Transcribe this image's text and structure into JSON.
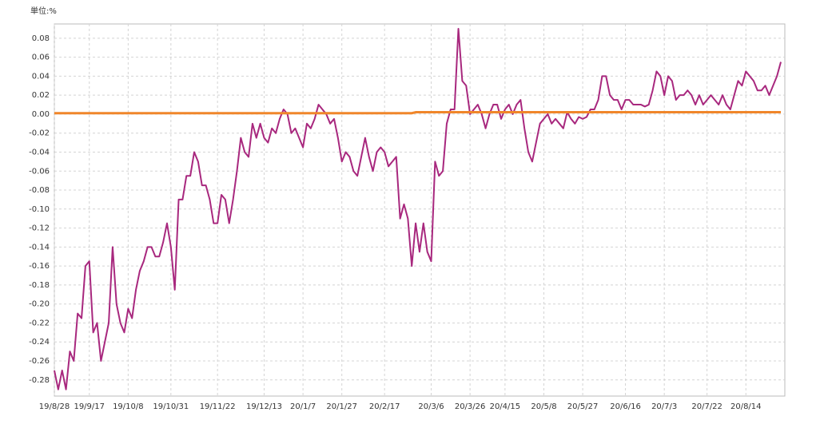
{
  "chart_data": {
    "type": "line",
    "unit_label": "単位:%",
    "categories": [
      "19/8/28",
      null,
      null,
      null,
      null,
      null,
      null,
      null,
      null,
      "19/9/17",
      null,
      null,
      null,
      null,
      null,
      null,
      null,
      null,
      null,
      "19/10/8",
      null,
      null,
      null,
      null,
      null,
      null,
      null,
      null,
      null,
      null,
      "19/10/31",
      null,
      null,
      null,
      null,
      null,
      null,
      null,
      null,
      null,
      null,
      null,
      "19/11/22",
      null,
      null,
      null,
      null,
      null,
      null,
      null,
      null,
      null,
      null,
      null,
      "19/12/13",
      null,
      null,
      null,
      null,
      null,
      null,
      null,
      null,
      null,
      "20/1/7",
      null,
      null,
      null,
      null,
      null,
      null,
      null,
      null,
      null,
      "20/1/27",
      null,
      null,
      null,
      null,
      null,
      null,
      null,
      null,
      null,
      null,
      "20/2/17",
      null,
      null,
      null,
      null,
      null,
      null,
      null,
      null,
      null,
      null,
      null,
      "20/3/6",
      null,
      null,
      null,
      null,
      null,
      null,
      null,
      null,
      null,
      "20/3/26",
      null,
      null,
      null,
      null,
      null,
      null,
      null,
      null,
      "20/4/15",
      null,
      null,
      null,
      null,
      null,
      null,
      null,
      null,
      null,
      "20/5/8",
      null,
      null,
      null,
      null,
      null,
      null,
      null,
      null,
      null,
      "20/5/27",
      null,
      null,
      null,
      null,
      null,
      null,
      null,
      null,
      null,
      null,
      "20/6/16",
      null,
      null,
      null,
      null,
      null,
      null,
      null,
      null,
      null,
      "20/7/3",
      null,
      null,
      null,
      null,
      null,
      null,
      null,
      null,
      null,
      null,
      "20/7/22",
      null,
      null,
      null,
      null,
      null,
      null,
      null,
      null,
      null,
      "20/8/14",
      null,
      null,
      null,
      null,
      null,
      null,
      null,
      null,
      null
    ],
    "series": [
      {
        "color": "#a8287e",
        "width": 2,
        "values": [
          -0.27,
          -0.29,
          -0.27,
          -0.29,
          -0.25,
          -0.26,
          -0.21,
          -0.215,
          -0.16,
          -0.155,
          -0.23,
          -0.22,
          -0.26,
          -0.24,
          -0.22,
          -0.14,
          -0.2,
          -0.22,
          -0.23,
          -0.205,
          -0.215,
          -0.185,
          -0.165,
          -0.155,
          -0.14,
          -0.14,
          -0.15,
          -0.15,
          -0.135,
          -0.115,
          -0.14,
          -0.185,
          -0.09,
          -0.09,
          -0.065,
          -0.065,
          -0.04,
          -0.05,
          -0.075,
          -0.075,
          -0.09,
          -0.115,
          -0.115,
          -0.085,
          -0.09,
          -0.115,
          -0.09,
          -0.06,
          -0.025,
          -0.04,
          -0.045,
          -0.01,
          -0.025,
          -0.01,
          -0.025,
          -0.03,
          -0.015,
          -0.02,
          -0.005,
          0.005,
          0,
          -0.02,
          -0.015,
          -0.025,
          -0.035,
          -0.01,
          -0.015,
          -0.005,
          0.01,
          0.005,
          0,
          -0.01,
          -0.005,
          -0.025,
          -0.05,
          -0.04,
          -0.045,
          -0.06,
          -0.065,
          -0.045,
          -0.025,
          -0.045,
          -0.06,
          -0.04,
          -0.035,
          -0.04,
          -0.055,
          -0.05,
          -0.045,
          -0.11,
          -0.095,
          -0.11,
          -0.16,
          -0.115,
          -0.145,
          -0.115,
          -0.145,
          -0.155,
          -0.05,
          -0.065,
          -0.06,
          -0.01,
          0.005,
          0.005,
          0.09,
          0.035,
          0.03,
          0,
          0.005,
          0.01,
          0,
          -0.015,
          0,
          0.01,
          0.01,
          -0.005,
          0.005,
          0.01,
          0,
          0.01,
          0.015,
          -0.015,
          -0.04,
          -0.05,
          -0.03,
          -0.01,
          -0.005,
          0,
          -0.01,
          -0.005,
          -0.01,
          -0.015,
          0.002,
          -0.005,
          -0.01,
          -0.003,
          -0.005,
          -0.003,
          0.005,
          0.005,
          0.015,
          0.04,
          0.04,
          0.02,
          0.015,
          0.015,
          0.005,
          0.015,
          0.015,
          0.01,
          0.01,
          0.01,
          0.008,
          0.01,
          0.025,
          0.045,
          0.04,
          0.02,
          0.04,
          0.035,
          0.015,
          0.02,
          0.02,
          0.025,
          0.02,
          0.01,
          0.02,
          0.01,
          0.015,
          0.02,
          0.015,
          0.01,
          0.02,
          0.01,
          0.005,
          0.02,
          0.035,
          0.03,
          0.045,
          0.04,
          0.035,
          0.025,
          0.025,
          0.03,
          0.02,
          0.03,
          0.04,
          0.055
        ]
      },
      {
        "color": "#f0862a",
        "width": 3,
        "values": [
          0.001,
          0.001,
          0.001,
          0.001,
          0.001,
          0.001,
          0.001,
          0.001,
          0.001,
          0.001,
          0.001,
          0.001,
          0.001,
          0.001,
          0.001,
          0.001,
          0.001,
          0.001,
          0.001,
          0.001,
          0.001,
          0.001,
          0.001,
          0.001,
          0.001,
          0.001,
          0.001,
          0.001,
          0.001,
          0.001,
          0.001,
          0.001,
          0.001,
          0.001,
          0.001,
          0.001,
          0.001,
          0.001,
          0.001,
          0.001,
          0.001,
          0.001,
          0.001,
          0.001,
          0.001,
          0.001,
          0.001,
          0.001,
          0.001,
          0.001,
          0.001,
          0.001,
          0.001,
          0.001,
          0.001,
          0.001,
          0.001,
          0.001,
          0.001,
          0.001,
          0.001,
          0.001,
          0.001,
          0.001,
          0.001,
          0.001,
          0.001,
          0.001,
          0.001,
          0.001,
          0.001,
          0.001,
          0.001,
          0.001,
          0.001,
          0.001,
          0.001,
          0.001,
          0.001,
          0.001,
          0.001,
          0.001,
          0.001,
          0.001,
          0.001,
          0.001,
          0.001,
          0.001,
          0.001,
          0.001,
          0.001,
          0.001,
          0.001,
          0.002,
          0.002,
          0.002,
          0.002,
          0.002,
          0.002,
          0.002,
          0.002,
          0.002,
          0.002,
          0.002,
          0.002,
          0.002,
          0.002,
          0.002,
          0.002,
          0.002,
          0.002,
          0.002,
          0.002,
          0.002,
          0.002,
          0.002,
          0.002,
          0.002,
          0.002,
          0.002,
          0.002,
          0.002,
          0.002,
          0.002,
          0.002,
          0.002,
          0.002,
          0.002,
          0.002,
          0.002,
          0.002,
          0.002,
          0.002,
          0.002,
          0.002,
          0.002,
          0.002,
          0.002,
          0.002,
          0.002,
          0.002,
          0.002,
          0.002,
          0.002,
          0.002,
          0.002,
          0.002,
          0.002,
          0.002,
          0.002,
          0.002,
          0.002,
          0.002,
          0.002,
          0.002,
          0.002,
          0.002,
          0.002,
          0.002,
          0.002,
          0.002,
          0.002,
          0.002,
          0.002,
          0.002,
          0.002,
          0.002,
          0.002,
          0.002,
          0.002,
          0.002,
          0.002,
          0.002,
          0.002,
          0.002,
          0.002,
          0.002,
          0.002,
          0.002,
          0.002,
          0.002,
          0.002,
          0.002,
          0.002,
          0.002,
          0.002,
          0.002,
          0.002
        ]
      }
    ],
    "ylim": [
      -0.297,
      0.095
    ],
    "yticks": [
      0.08,
      0.06,
      0.04,
      0.02,
      {
        "value": 0,
        "label": "0.00"
      },
      -0.02,
      -0.04,
      -0.06,
      -0.08,
      {
        "value": -0.1,
        "label": "-0.10"
      },
      -0.12,
      -0.14,
      -0.16,
      -0.18,
      {
        "value": -0.2,
        "label": "-0.20"
      },
      -0.22,
      -0.24,
      -0.26,
      -0.28
    ],
    "grid": true
  }
}
